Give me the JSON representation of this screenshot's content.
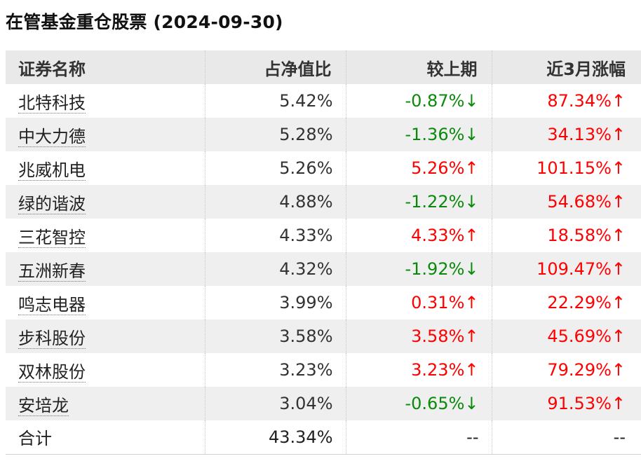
{
  "title": "在管基金重仓股票 (2024-09-30)",
  "colors": {
    "up": "#ff0000",
    "down": "#0a8a0a",
    "header_bg": "#e9e9e9",
    "stripe_bg": "#efefef"
  },
  "table": {
    "headers": [
      "证券名称",
      "占净值比",
      "较上期",
      "近3月涨幅"
    ],
    "rows": [
      {
        "name": "北特科技",
        "ratio": "5.42%",
        "change": "-0.87%↓",
        "change_dir": "down",
        "gain": "87.34%↑",
        "gain_dir": "up"
      },
      {
        "name": "中大力德",
        "ratio": "5.28%",
        "change": "-1.36%↓",
        "change_dir": "down",
        "gain": "34.13%↑",
        "gain_dir": "up"
      },
      {
        "name": "兆威机电",
        "ratio": "5.26%",
        "change": "5.26%↑",
        "change_dir": "up",
        "gain": "101.15%↑",
        "gain_dir": "up"
      },
      {
        "name": "绿的谐波",
        "ratio": "4.88%",
        "change": "-1.22%↓",
        "change_dir": "down",
        "gain": "54.68%↑",
        "gain_dir": "up"
      },
      {
        "name": "三花智控",
        "ratio": "4.33%",
        "change": "4.33%↑",
        "change_dir": "up",
        "gain": "18.58%↑",
        "gain_dir": "up"
      },
      {
        "name": "五洲新春",
        "ratio": "4.32%",
        "change": "-1.92%↓",
        "change_dir": "down",
        "gain": "109.47%↑",
        "gain_dir": "up"
      },
      {
        "name": "鸣志电器",
        "ratio": "3.99%",
        "change": "0.31%↑",
        "change_dir": "up",
        "gain": "22.29%↑",
        "gain_dir": "up"
      },
      {
        "name": "步科股份",
        "ratio": "3.58%",
        "change": "3.58%↑",
        "change_dir": "up",
        "gain": "45.69%↑",
        "gain_dir": "up"
      },
      {
        "name": "双林股份",
        "ratio": "3.23%",
        "change": "3.23%↑",
        "change_dir": "up",
        "gain": "79.29%↑",
        "gain_dir": "up"
      },
      {
        "name": "安培龙",
        "ratio": "3.04%",
        "change": "-0.65%↓",
        "change_dir": "down",
        "gain": "91.53%↑",
        "gain_dir": "up"
      }
    ],
    "total": {
      "label": "合计",
      "ratio": "43.34%",
      "change": "--",
      "gain": "--"
    }
  }
}
